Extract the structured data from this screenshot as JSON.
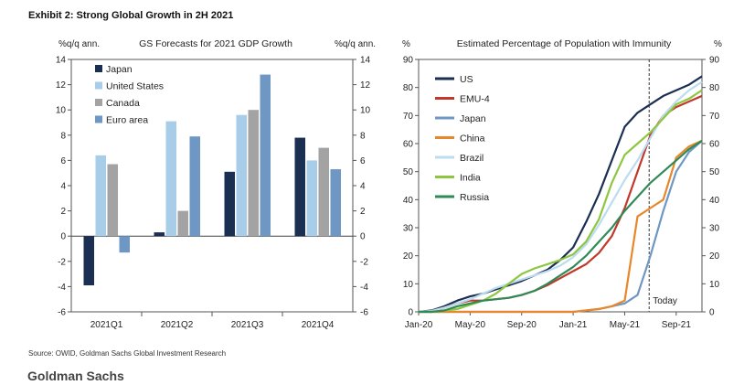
{
  "exhibit_title": "Exhibit 2: Strong Global Growth in 2H 2021",
  "source_note": "Source: OWID, Goldman Sachs Global Investment Research",
  "brand": "Goldman Sachs",
  "chart_data": [
    {
      "type": "bar",
      "title": "GS Forecasts for 2021 GDP Growth",
      "ylabel_left": "%q/q ann.",
      "ylabel_right": "%q/q ann.",
      "ylim": [
        -6,
        14
      ],
      "yticks": [
        -6,
        -4,
        -2,
        0,
        2,
        4,
        6,
        8,
        10,
        12,
        14
      ],
      "categories": [
        "2021Q1",
        "2021Q2",
        "2021Q3",
        "2021Q4"
      ],
      "legend_position": "top-left",
      "series": [
        {
          "name": "Japan",
          "color": "#1b2f52",
          "values": [
            -3.9,
            0.3,
            5.1,
            7.8
          ]
        },
        {
          "name": "United States",
          "color": "#a8cde9",
          "values": [
            6.4,
            9.1,
            9.6,
            6.0
          ]
        },
        {
          "name": "Canada",
          "color": "#a3a3a3",
          "values": [
            5.7,
            2.0,
            10.0,
            7.0
          ]
        },
        {
          "name": "Euro area",
          "color": "#6e97c4",
          "values": [
            -1.3,
            7.9,
            12.8,
            5.3
          ]
        }
      ]
    },
    {
      "type": "line",
      "title": "Estimated Percentage of Population with Immunity",
      "ylabel_left": "%",
      "ylabel_right": "%",
      "ylim": [
        0,
        90
      ],
      "yticks": [
        0,
        10,
        20,
        30,
        40,
        50,
        60,
        70,
        80,
        90
      ],
      "xlim": [
        0,
        22
      ],
      "xticks": [
        {
          "x": 0,
          "label": "Jan-20"
        },
        {
          "x": 4,
          "label": "May-20"
        },
        {
          "x": 8,
          "label": "Sep-20"
        },
        {
          "x": 12,
          "label": "Jan-21"
        },
        {
          "x": 16,
          "label": "May-21"
        },
        {
          "x": 20,
          "label": "Sep-21"
        }
      ],
      "x_unit": "months since Jan-20",
      "today_marker": {
        "x": 17.9,
        "label": "Today"
      },
      "legend_position": "top-left",
      "series": [
        {
          "name": "US",
          "color": "#1b2f52",
          "x": [
            0,
            1,
            2,
            3,
            4,
            5,
            6,
            7,
            8,
            9,
            10,
            11,
            12,
            13,
            14,
            15,
            16,
            17,
            18,
            19,
            20,
            21,
            22
          ],
          "values": [
            0,
            0.5,
            2,
            4,
            5.5,
            6.5,
            8,
            9.5,
            11,
            13,
            15,
            18.5,
            23,
            32,
            42,
            54,
            66,
            71,
            74,
            77,
            79,
            81,
            84
          ]
        },
        {
          "name": "EMU-4",
          "color": "#c0392b",
          "x": [
            0,
            1,
            2,
            3,
            4,
            5,
            6,
            7,
            8,
            9,
            10,
            11,
            12,
            13,
            14,
            15,
            16,
            17,
            18,
            19,
            20,
            21,
            22
          ],
          "values": [
            0,
            0.3,
            1.5,
            3,
            4,
            4,
            4.5,
            5,
            6,
            7.5,
            9.5,
            12,
            14.5,
            17,
            21,
            27,
            37,
            50,
            63,
            70,
            73,
            75,
            77
          ]
        },
        {
          "name": "Japan",
          "color": "#6e97c4",
          "x": [
            0,
            1,
            2,
            3,
            4,
            5,
            6,
            7,
            8,
            9,
            10,
            11,
            12,
            13,
            14,
            15,
            16,
            17,
            18,
            19,
            20,
            21,
            22
          ],
          "values": [
            0,
            0,
            0,
            0,
            0,
            0,
            0,
            0,
            0,
            0,
            0,
            0,
            0,
            0.5,
            1,
            2,
            3,
            6,
            20,
            36,
            50,
            57,
            61
          ]
        },
        {
          "name": "China",
          "color": "#e8872a",
          "x": [
            0,
            1,
            2,
            3,
            4,
            5,
            6,
            7,
            8,
            9,
            10,
            11,
            12,
            13,
            14,
            15,
            16,
            17,
            18,
            19,
            20,
            21,
            22
          ],
          "values": [
            0,
            0,
            0,
            0,
            0,
            0,
            0,
            0,
            0,
            0,
            0,
            0,
            0,
            0.5,
            1,
            2,
            4,
            34,
            37,
            40,
            55,
            59,
            61
          ]
        },
        {
          "name": "Brazil",
          "color": "#bcdcf0",
          "x": [
            0,
            1,
            2,
            3,
            4,
            5,
            6,
            7,
            8,
            9,
            10,
            11,
            12,
            13,
            14,
            15,
            16,
            17,
            18,
            19,
            20,
            21,
            22
          ],
          "values": [
            0,
            0.3,
            1.5,
            3,
            4.5,
            6.5,
            8.5,
            10,
            11.5,
            13,
            14.5,
            16.5,
            19.5,
            24,
            31,
            39,
            47,
            54,
            62,
            70,
            75,
            79,
            82
          ]
        },
        {
          "name": "India",
          "color": "#8dc63f",
          "x": [
            0,
            1,
            2,
            3,
            4,
            5,
            6,
            7,
            8,
            9,
            10,
            11,
            12,
            13,
            14,
            15,
            16,
            17,
            18,
            19,
            20,
            21,
            22
          ],
          "values": [
            0,
            0,
            0.5,
            1,
            2.5,
            4,
            6.5,
            10,
            13.5,
            15.5,
            17,
            18.5,
            20.5,
            25,
            33,
            46,
            56,
            60,
            64,
            69,
            74,
            76,
            79
          ]
        },
        {
          "name": "Russia",
          "color": "#2e8b57",
          "x": [
            0,
            1,
            2,
            3,
            4,
            5,
            6,
            7,
            8,
            9,
            10,
            11,
            12,
            13,
            14,
            15,
            16,
            17,
            18,
            19,
            20,
            21,
            22
          ],
          "values": [
            0,
            0,
            0.5,
            2,
            3,
            4,
            4.5,
            5,
            6,
            7.5,
            10,
            13,
            16,
            20,
            25,
            30,
            36,
            41,
            46,
            50,
            54,
            58,
            61
          ]
        }
      ]
    }
  ]
}
